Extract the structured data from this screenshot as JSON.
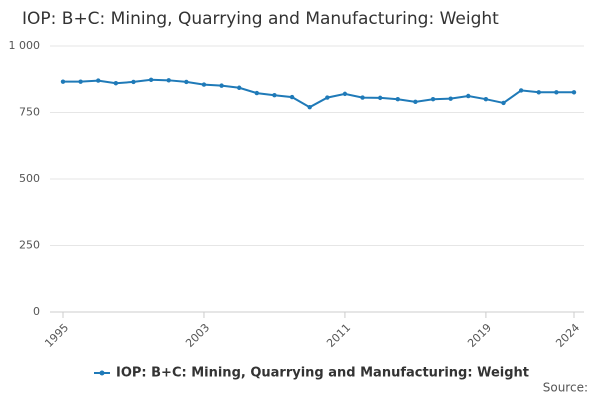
{
  "chart_data": {
    "type": "line",
    "title": "IOP: B+C: Mining, Quarrying and Manufacturing: Weight",
    "x": [
      1995,
      1996,
      1997,
      1998,
      1999,
      2000,
      2001,
      2002,
      2003,
      2004,
      2005,
      2006,
      2007,
      2008,
      2009,
      2010,
      2011,
      2012,
      2013,
      2014,
      2015,
      2016,
      2017,
      2018,
      2019,
      2020,
      2021,
      2022,
      2023,
      2024
    ],
    "series": [
      {
        "name": "IOP: B+C: Mining, Quarrying and Manufacturing: Weight",
        "color": "#1f7ab8",
        "values": [
          866,
          866,
          870,
          860,
          865,
          873,
          871,
          865,
          855,
          851,
          843,
          823,
          815,
          808,
          770,
          806,
          820,
          806,
          805,
          800,
          790,
          800,
          802,
          812,
          800,
          786,
          833,
          826,
          826,
          826
        ]
      }
    ],
    "xlim": [
      1995,
      2024
    ],
    "xticks": [
      1995,
      2003,
      2011,
      2019,
      2024
    ],
    "ylim": [
      0,
      1000
    ],
    "yticks": [
      0,
      250,
      500,
      750,
      {
        "value": 1000,
        "label": "1 000"
      }
    ],
    "grid": true,
    "source": "Source:"
  }
}
